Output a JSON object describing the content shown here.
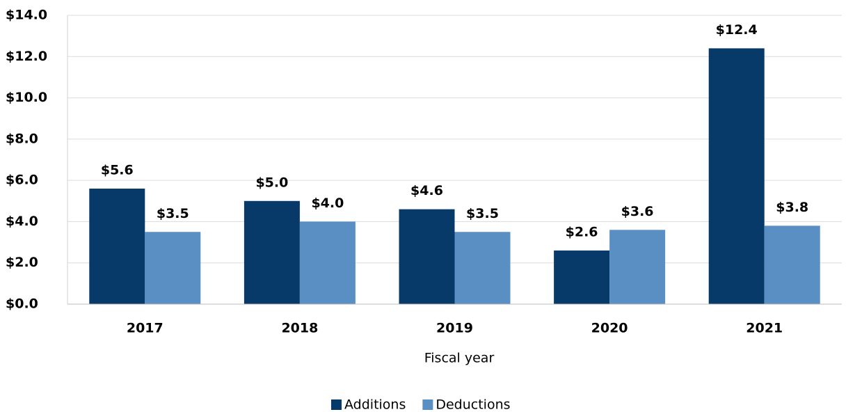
{
  "chart_data": {
    "type": "bar",
    "x_label": "Fiscal year",
    "categories": [
      "2017",
      "2018",
      "2019",
      "2020",
      "2021"
    ],
    "series": [
      {
        "name": "Additions",
        "color": "#083a69",
        "values": [
          5.6,
          5.0,
          4.6,
          2.6,
          12.4
        ],
        "value_labels": [
          "$5.6",
          "$5.0",
          "$4.6",
          "$2.6",
          "$12.4"
        ]
      },
      {
        "name": "Deductions",
        "color": "#5a8fc3",
        "values": [
          3.5,
          4.0,
          3.5,
          3.6,
          3.8
        ],
        "value_labels": [
          "$3.5",
          "$4.0",
          "$3.5",
          "$3.6",
          "$3.8"
        ]
      }
    ],
    "ylim": [
      0,
      14
    ],
    "yticks": [
      {
        "value": 0,
        "label": "$0.0"
      },
      {
        "value": 2,
        "label": "$2.0"
      },
      {
        "value": 4,
        "label": "$4.0"
      },
      {
        "value": 6,
        "label": "$6.0"
      },
      {
        "value": 8,
        "label": "$8.0"
      },
      {
        "value": 10,
        "label": "$10.0"
      },
      {
        "value": 12,
        "label": "$12.0"
      },
      {
        "value": 14,
        "label": "$14.0"
      }
    ],
    "grid": true,
    "legend": "bottom"
  }
}
